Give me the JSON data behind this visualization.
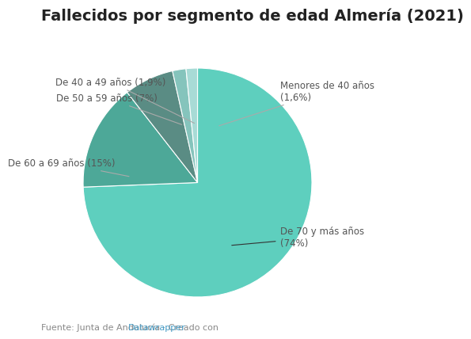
{
  "title": "Fallecidos por segmento de edad Almería (2021)",
  "slices": [
    {
      "label": "De 70 y más años\n(74%)",
      "value": 74,
      "color": "#5ecfbe"
    },
    {
      "label": "De 60 a 69 años (15%)",
      "value": 15,
      "color": "#4da898"
    },
    {
      "label": "De 50 a 59 años (7%)",
      "value": 7,
      "color": "#5a8c84"
    },
    {
      "label": "De 40 a 49 años (1,9%)",
      "value": 1.9,
      "color": "#85c4bc"
    },
    {
      "label": "Menores de 40 años\n(1,6%)",
      "value": 1.6,
      "color": "#a8dbd6"
    }
  ],
  "source_text": "Fuente: Junta de Andalucía · Creado con ",
  "source_link_text": "Datawrapper",
  "source_link_color": "#4a9fc8",
  "background_color": "#ffffff",
  "title_fontsize": 14,
  "label_fontsize": 8.5,
  "source_fontsize": 8,
  "annot_data": [
    {
      "pt": [
        0.28,
        -0.55
      ],
      "txt": [
        0.72,
        -0.38
      ],
      "ha": "left",
      "va": "top",
      "lbl": "De 70 y más años\n(74%)",
      "arrow_color": "#333333"
    },
    {
      "pt": [
        -0.58,
        0.05
      ],
      "txt": [
        -0.72,
        0.17
      ],
      "ha": "right",
      "va": "center",
      "lbl": "De 60 a 69 años (15%)",
      "arrow_color": "#aaaaaa"
    },
    {
      "pt": [
        -0.12,
        0.5
      ],
      "txt": [
        -0.35,
        0.74
      ],
      "ha": "right",
      "va": "center",
      "lbl": "De 50 a 59 años (7%)",
      "arrow_color": "#aaaaaa"
    },
    {
      "pt": [
        -0.01,
        0.51
      ],
      "txt": [
        -0.28,
        0.88
      ],
      "ha": "right",
      "va": "center",
      "lbl": "De 40 a 49 años (1,9%)",
      "arrow_color": "#aaaaaa"
    },
    {
      "pt": [
        0.17,
        0.49
      ],
      "txt": [
        0.72,
        0.8
      ],
      "ha": "left",
      "va": "center",
      "lbl": "Menores de 40 años\n(1,6%)",
      "arrow_color": "#aaaaaa"
    }
  ]
}
